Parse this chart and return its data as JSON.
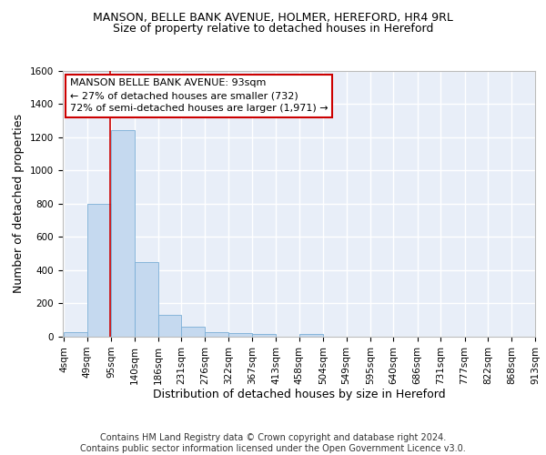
{
  "title1": "MANSON, BELLE BANK AVENUE, HOLMER, HEREFORD, HR4 9RL",
  "title2": "Size of property relative to detached houses in Hereford",
  "xlabel": "Distribution of detached houses by size in Hereford",
  "ylabel": "Number of detached properties",
  "bar_color": "#c5d9ef",
  "bar_edge_color": "#7aaed6",
  "bg_color": "#e8eef8",
  "grid_color": "#ffffff",
  "bin_edges": [
    4,
    49,
    95,
    140,
    186,
    231,
    276,
    322,
    367,
    413,
    458,
    504,
    549,
    595,
    640,
    686,
    731,
    777,
    822,
    868,
    913
  ],
  "bar_heights": [
    25,
    800,
    1240,
    450,
    130,
    60,
    25,
    20,
    15,
    0,
    15,
    0,
    0,
    0,
    0,
    0,
    0,
    0,
    0,
    0
  ],
  "property_size": 93,
  "red_line_color": "#cc0000",
  "annotation_line1": "MANSON BELLE BANK AVENUE: 93sqm",
  "annotation_line2": "← 27% of detached houses are smaller (732)",
  "annotation_line3": "72% of semi-detached houses are larger (1,971) →",
  "annotation_box_color": "#ffffff",
  "annotation_border_color": "#cc0000",
  "ylim": [
    0,
    1600
  ],
  "yticks": [
    0,
    200,
    400,
    600,
    800,
    1000,
    1200,
    1400,
    1600
  ],
  "footnote": "Contains HM Land Registry data © Crown copyright and database right 2024.\nContains public sector information licensed under the Open Government Licence v3.0.",
  "title1_fontsize": 9,
  "title2_fontsize": 9,
  "xlabel_fontsize": 9,
  "ylabel_fontsize": 9,
  "annotation_fontsize": 8,
  "footnote_fontsize": 7,
  "tick_fontsize": 7.5
}
